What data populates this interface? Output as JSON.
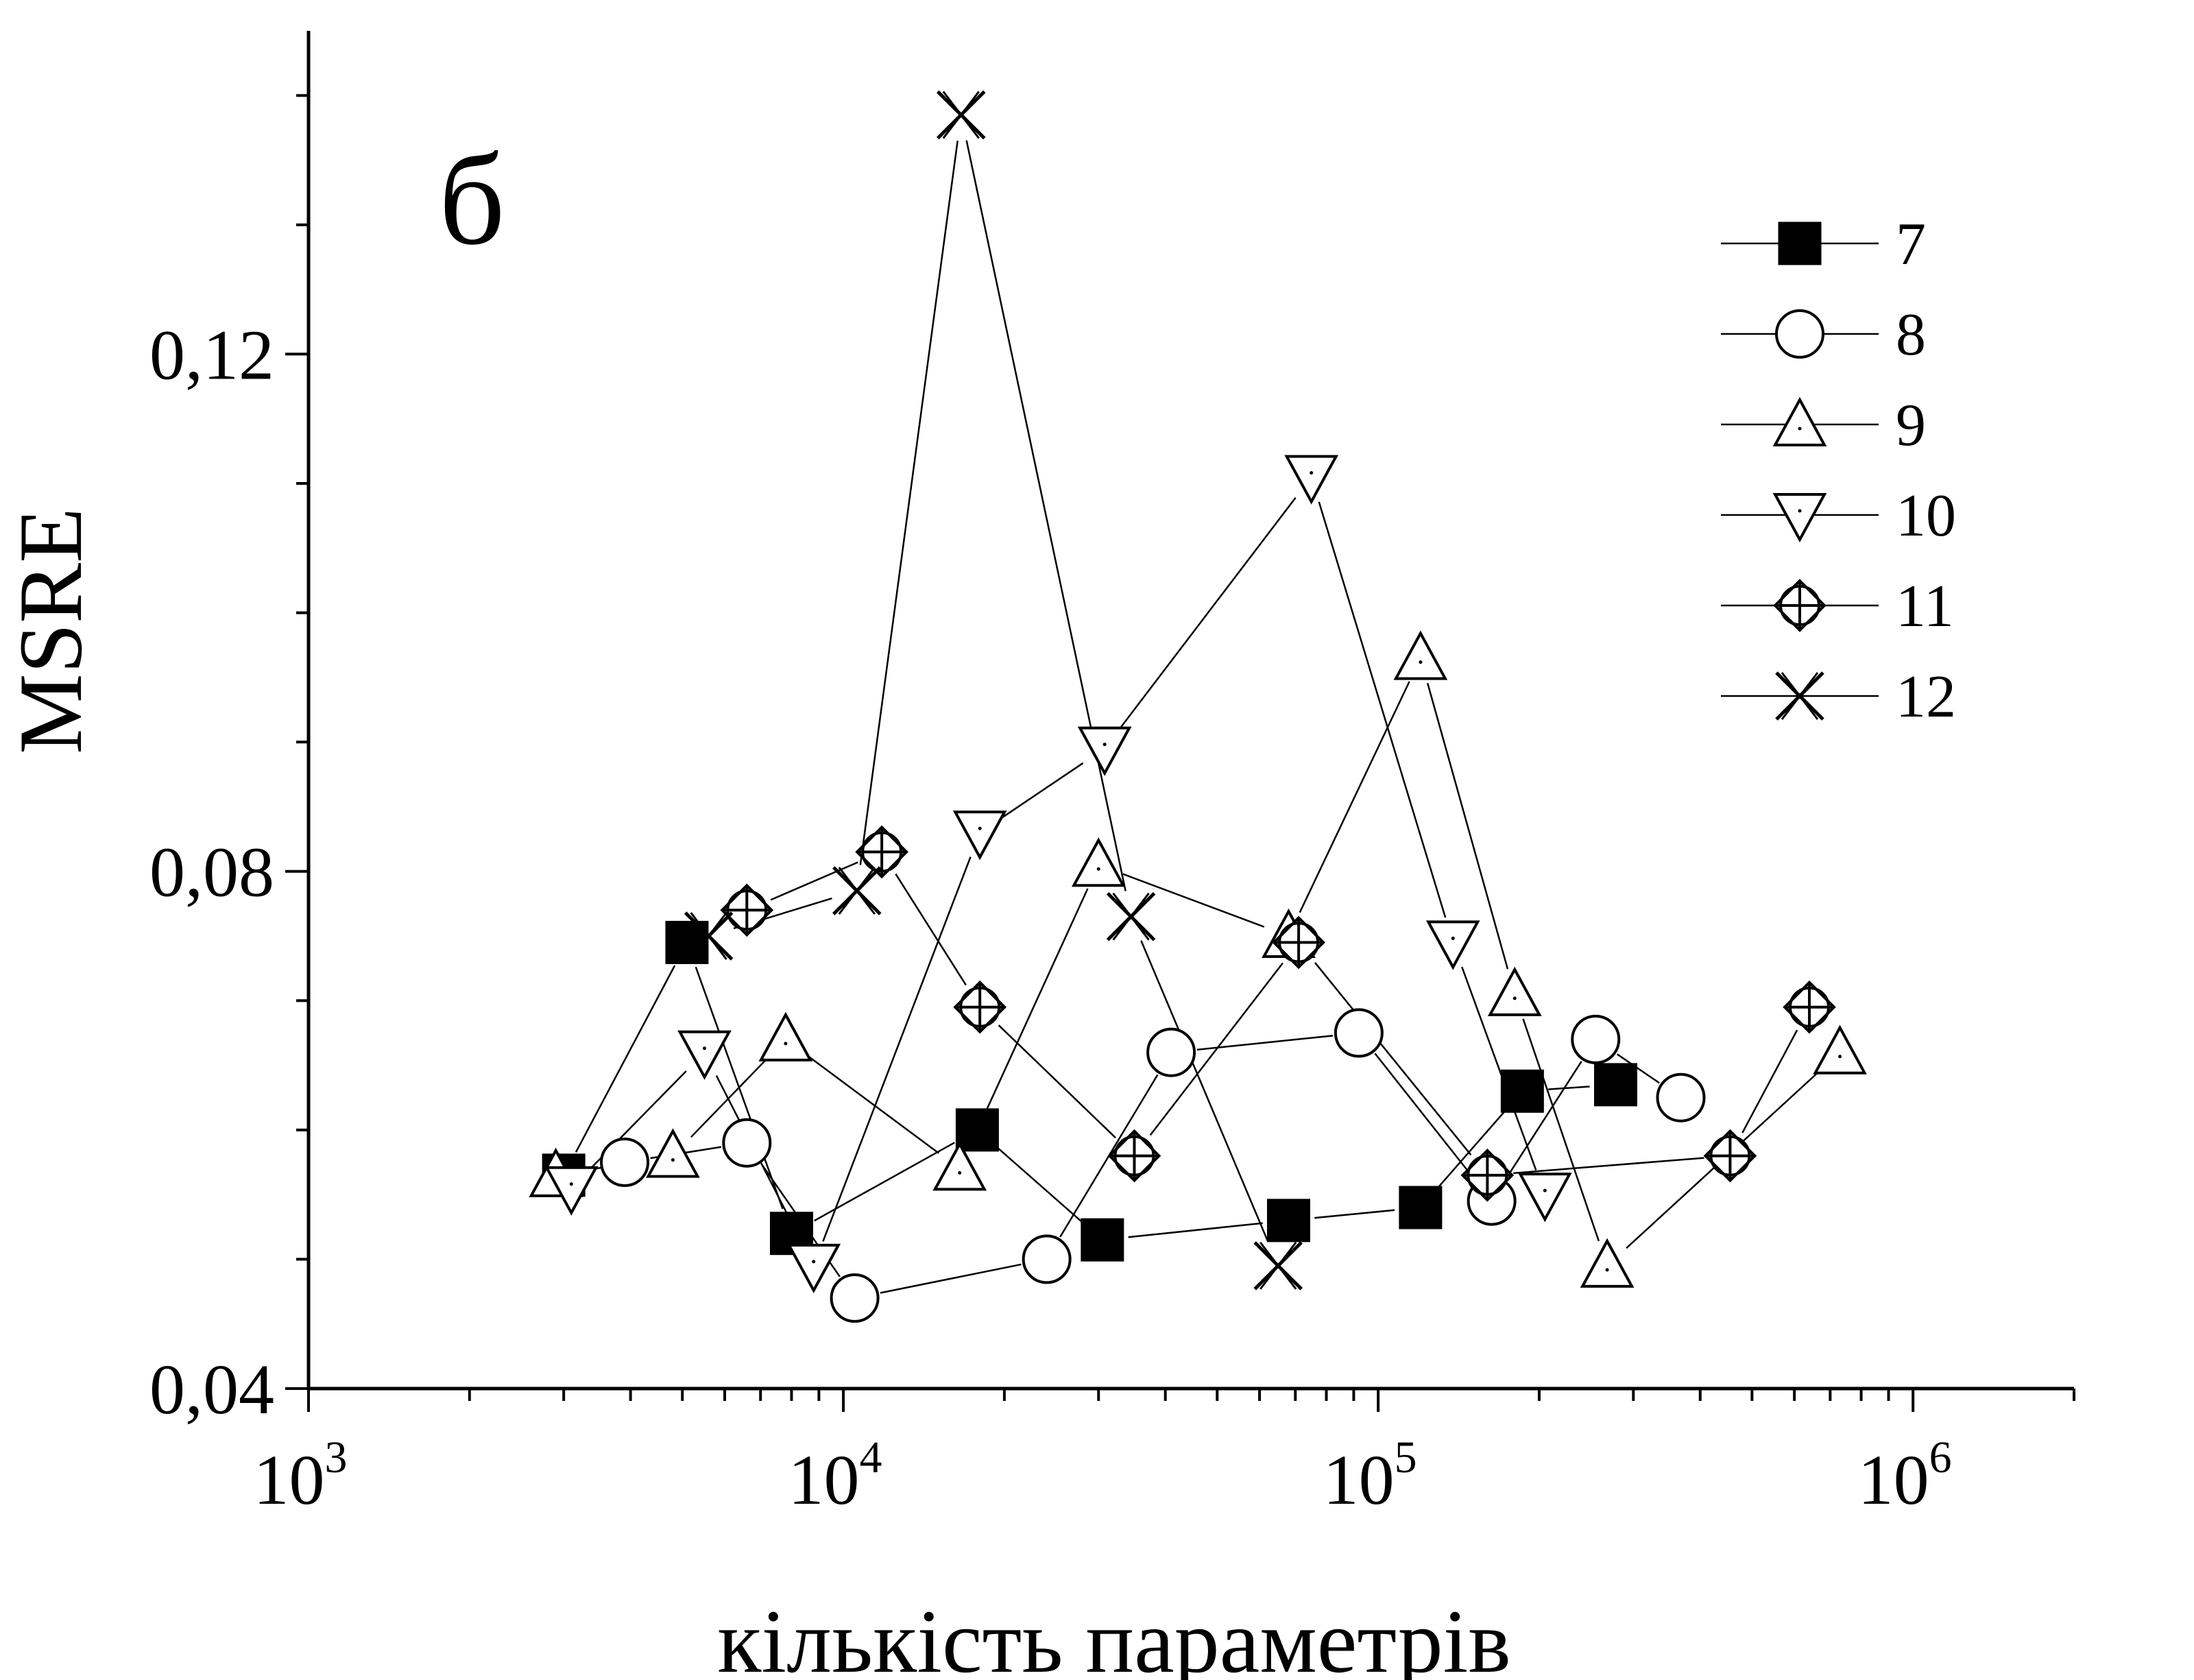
{
  "chart_data": {
    "type": "scatter",
    "panel_label": "б",
    "xlabel": "кількість параметрів",
    "ylabel": "MSRE",
    "xscale": "log",
    "xlim": [
      1000,
      2000000
    ],
    "ylim": [
      0.04,
      0.145
    ],
    "xticks": [
      {
        "value": 1000,
        "base": "10",
        "exp": "3"
      },
      {
        "value": 10000,
        "base": "10",
        "exp": "4"
      },
      {
        "value": 100000,
        "base": "10",
        "exp": "5"
      },
      {
        "value": 1000000,
        "base": "10",
        "exp": "6"
      }
    ],
    "yticks": [
      {
        "value": 0.04,
        "label": "0,04"
      },
      {
        "value": 0.08,
        "label": "0,08"
      },
      {
        "value": 0.12,
        "label": "0,12"
      }
    ],
    "grid": false,
    "legend_position": "top-right",
    "series": [
      {
        "name": "7",
        "marker": "filled-square",
        "x": [
          3000,
          5100,
          8000,
          17800,
          30500,
          68000,
          120000,
          186000,
          278000
        ],
        "y": [
          0.0565,
          0.0745,
          0.052,
          0.06,
          0.0515,
          0.053,
          0.054,
          0.063,
          0.0635
        ]
      },
      {
        "name": "8",
        "marker": "circle",
        "x": [
          3900,
          6600,
          10500,
          24000,
          41000,
          92000,
          163000,
          255000,
          368000
        ],
        "y": [
          0.0575,
          0.059,
          0.047,
          0.05,
          0.066,
          0.0675,
          0.0545,
          0.067,
          0.0625
        ]
      },
      {
        "name": "9",
        "marker": "triangle-up",
        "x": [
          2900,
          4800,
          7800,
          16500,
          30000,
          68000,
          120000,
          180000,
          268000,
          730000
        ],
        "y": [
          0.0565,
          0.058,
          0.067,
          0.057,
          0.0805,
          0.075,
          0.0965,
          0.0705,
          0.0495,
          0.066
        ]
      },
      {
        "name": "10",
        "marker": "triangle-down",
        "x": [
          3100,
          5500,
          8800,
          18000,
          30800,
          75000,
          138000,
          205000
        ],
        "y": [
          0.0555,
          0.066,
          0.0495,
          0.083,
          0.0895,
          0.1105,
          0.0745,
          0.055
        ]
      },
      {
        "name": "11",
        "marker": "crossed-diamond",
        "x": [
          6600,
          11800,
          18000,
          35000,
          71000,
          160000,
          455000,
          640000
        ],
        "y": [
          0.077,
          0.0815,
          0.0695,
          0.058,
          0.0745,
          0.0565,
          0.058,
          0.0695
        ]
      },
      {
        "name": "12",
        "marker": "crossed-cross",
        "x": [
          5600,
          10600,
          16600,
          34500,
          65000
        ],
        "y": [
          0.075,
          0.0785,
          0.1385,
          0.0765,
          0.0495
        ]
      }
    ]
  }
}
